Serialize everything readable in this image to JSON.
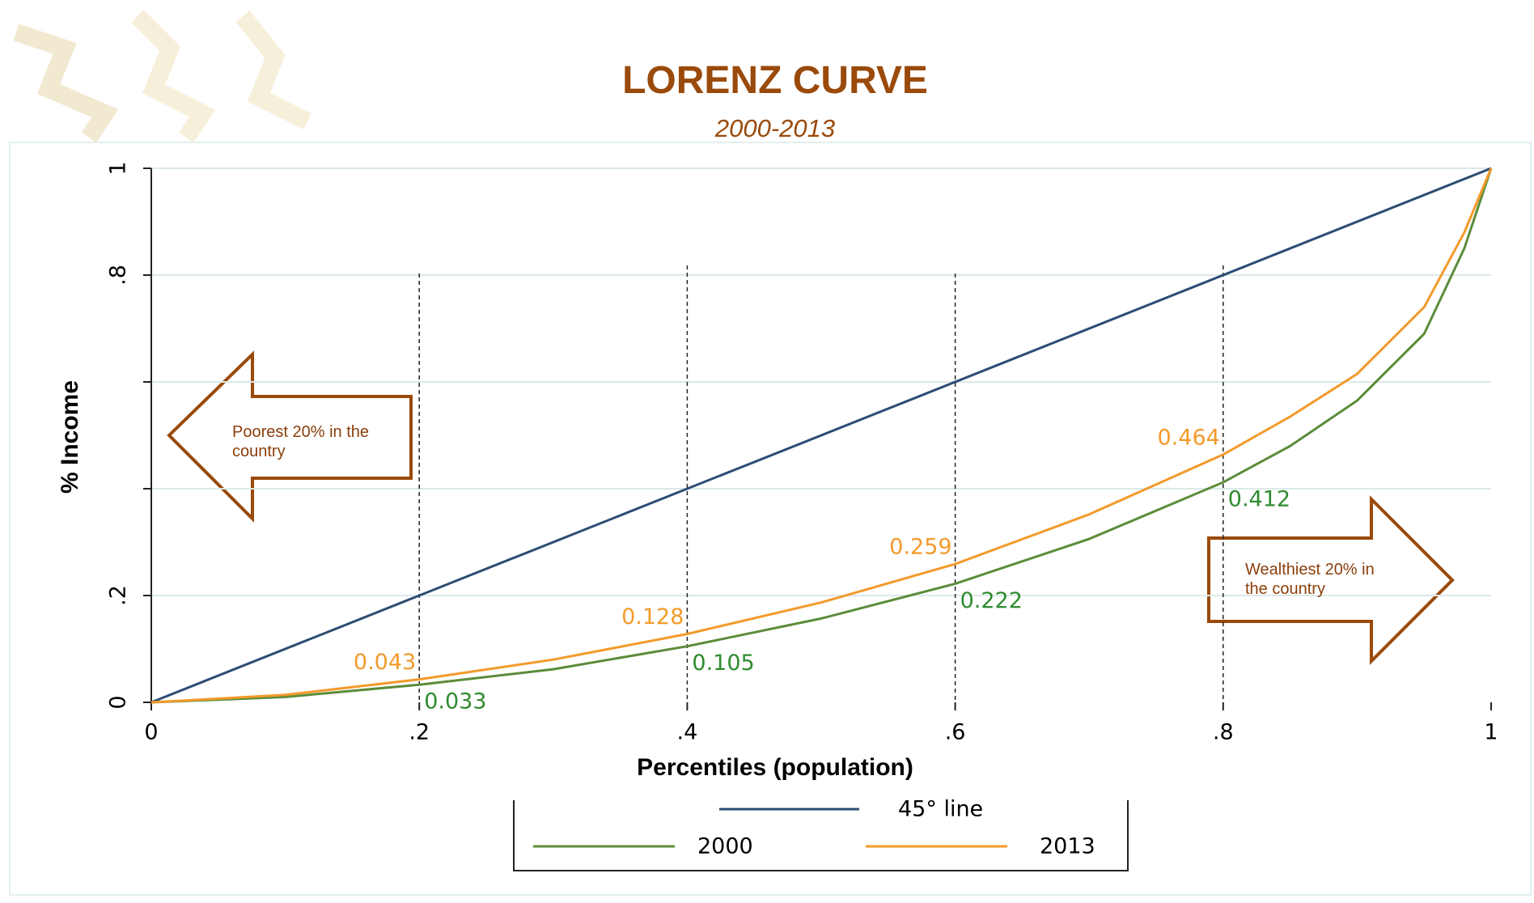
{
  "chart_data": {
    "type": "line",
    "title": "LORENZ CURVE",
    "subtitle": "2000-2013",
    "x_label": "Percentiles (population)",
    "y_label": "% Income",
    "xlim": [
      0,
      1
    ],
    "ylim": [
      0,
      1
    ],
    "xticks": [
      0,
      {
        "value": 0.2,
        "label": ".2"
      },
      {
        "value": 0.4,
        "label": ".4"
      },
      {
        "value": 0.6,
        "label": ".6"
      },
      {
        "value": 0.8,
        "label": ".8"
      },
      1
    ],
    "yticks": [
      0,
      {
        "value": 0.2,
        "label": ".2"
      },
      {
        "value": 0.4,
        "label": null
      },
      {
        "value": 0.6,
        "label": null
      },
      {
        "value": 0.8,
        "label": ".8"
      },
      1
    ],
    "grid": true,
    "series": [
      {
        "name": "45° line",
        "color": "#2b4c74",
        "x": [
          0,
          1
        ],
        "values": [
          0,
          1
        ]
      },
      {
        "name": "2000",
        "color": "#5b8c3a",
        "label_color": "#2e8b2e",
        "x": [
          0,
          0.1,
          0.2,
          0.3,
          0.4,
          0.5,
          0.6,
          0.7,
          0.8,
          0.85,
          0.9,
          0.95,
          0.98,
          1
        ],
        "values": [
          0,
          0.01,
          0.033,
          0.062,
          0.105,
          0.157,
          0.222,
          0.306,
          0.412,
          0.48,
          0.565,
          0.69,
          0.85,
          1
        ],
        "value_labels": [
          null,
          null,
          "0.033",
          null,
          "0.105",
          null,
          "0.222",
          null,
          "0.412",
          null,
          null,
          null,
          null,
          null
        ]
      },
      {
        "name": "2013",
        "color": "#f39a2b",
        "label_color": "#f39a2b",
        "x": [
          0,
          0.1,
          0.2,
          0.3,
          0.4,
          0.5,
          0.6,
          0.7,
          0.8,
          0.85,
          0.9,
          0.95,
          0.98,
          1
        ],
        "values": [
          0,
          0.014,
          0.043,
          0.08,
          0.128,
          0.187,
          0.259,
          0.352,
          0.464,
          0.535,
          0.615,
          0.74,
          0.88,
          1
        ],
        "value_labels": [
          null,
          null,
          "0.043",
          null,
          "0.128",
          null,
          "0.259",
          null,
          "0.464",
          null,
          null,
          null,
          null,
          null
        ]
      }
    ],
    "annotations": [
      "Poorest 20% in the country",
      "Wealthiest 20% in the country"
    ]
  }
}
